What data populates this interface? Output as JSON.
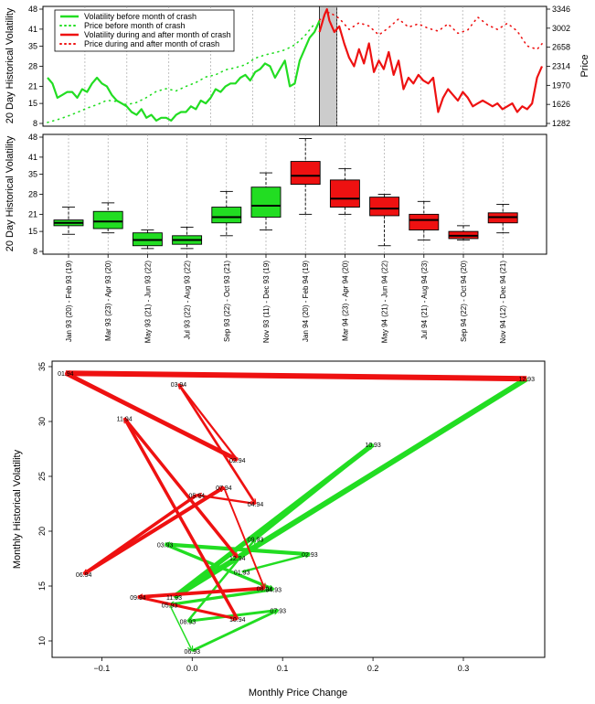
{
  "colors": {
    "green": "#22dd22",
    "red": "#ee1111",
    "crash_band": "#cccccc",
    "grid": "#999999"
  },
  "chart_data": [
    {
      "type": "line",
      "title": "",
      "ylabel_left": "20 Day Historical Volatility",
      "ylabel_right": "Price",
      "yticks_left": [
        "8",
        "15",
        "21",
        "28",
        "35",
        "41",
        "48"
      ],
      "ylim_left": [
        8,
        48
      ],
      "yticks_right": [
        "1282",
        "1626",
        "1970",
        "2314",
        "2658",
        "3002",
        "3346"
      ],
      "ylim_right": [
        1282,
        3346
      ],
      "crash_window": [
        0.55,
        0.585
      ],
      "legend": [
        "Volatility before month of crash",
        "Price before month of crash",
        "Volatility during and after month of crash",
        "Price during and after month of crash"
      ],
      "series": [
        {
          "name": "Volatility before month of crash",
          "style": "solid",
          "color": "green",
          "x": [
            0.0,
            0.01,
            0.02,
            0.03,
            0.04,
            0.05,
            0.06,
            0.07,
            0.08,
            0.09,
            0.1,
            0.11,
            0.12,
            0.13,
            0.14,
            0.15,
            0.16,
            0.17,
            0.18,
            0.19,
            0.2,
            0.21,
            0.22,
            0.23,
            0.24,
            0.25,
            0.26,
            0.27,
            0.28,
            0.29,
            0.3,
            0.31,
            0.32,
            0.33,
            0.34,
            0.35,
            0.36,
            0.37,
            0.38,
            0.39,
            0.4,
            0.41,
            0.42,
            0.43,
            0.44,
            0.45,
            0.46,
            0.47,
            0.48,
            0.49,
            0.5,
            0.51,
            0.52,
            0.53,
            0.54,
            0.55
          ],
          "y": [
            24,
            22,
            17,
            18,
            19,
            19,
            17,
            20,
            19,
            22,
            24,
            22,
            21,
            18,
            16,
            15,
            14,
            12,
            11,
            13,
            10,
            11,
            9,
            10,
            10,
            9,
            11,
            12,
            12,
            14,
            13,
            16,
            15,
            17,
            20,
            19,
            21,
            22,
            22,
            24,
            25,
            23,
            26,
            27,
            29,
            28,
            24,
            27,
            30,
            21,
            22,
            30,
            34,
            38,
            40,
            44
          ]
        },
        {
          "name": "Price before month of crash",
          "style": "dotted",
          "color": "green",
          "x": [
            0.0,
            0.02,
            0.04,
            0.06,
            0.08,
            0.1,
            0.12,
            0.14,
            0.16,
            0.18,
            0.2,
            0.22,
            0.24,
            0.26,
            0.28,
            0.3,
            0.32,
            0.34,
            0.36,
            0.38,
            0.4,
            0.42,
            0.44,
            0.46,
            0.48,
            0.5,
            0.52,
            0.54
          ],
          "y": [
            1300,
            1350,
            1410,
            1480,
            1560,
            1620,
            1700,
            1680,
            1620,
            1660,
            1750,
            1860,
            1910,
            1870,
            1950,
            2020,
            2120,
            2160,
            2250,
            2290,
            2340,
            2460,
            2520,
            2560,
            2610,
            2700,
            2860,
            3080
          ]
        },
        {
          "name": "Volatility during and after month of crash",
          "style": "solid",
          "color": "red",
          "x": [
            0.55,
            0.56,
            0.565,
            0.57,
            0.58,
            0.59,
            0.6,
            0.61,
            0.62,
            0.63,
            0.64,
            0.65,
            0.66,
            0.67,
            0.68,
            0.69,
            0.7,
            0.71,
            0.72,
            0.73,
            0.74,
            0.75,
            0.76,
            0.77,
            0.78,
            0.79,
            0.8,
            0.81,
            0.82,
            0.83,
            0.84,
            0.85,
            0.86,
            0.87,
            0.88,
            0.89,
            0.9,
            0.91,
            0.92,
            0.93,
            0.94,
            0.95,
            0.96,
            0.97,
            0.98,
            0.99,
            1.0
          ],
          "y": [
            40,
            46,
            48,
            44,
            40,
            42,
            36,
            31,
            28,
            34,
            29,
            36,
            26,
            30,
            27,
            33,
            25,
            30,
            20,
            24,
            22,
            25,
            23,
            22,
            24,
            12,
            17,
            20,
            18,
            16,
            19,
            17,
            14,
            15,
            16,
            15,
            14,
            15,
            13,
            14,
            15,
            12,
            14,
            13,
            15,
            24,
            28
          ]
        },
        {
          "name": "Price during and after month of crash",
          "style": "dotted",
          "color": "red",
          "x": [
            0.55,
            0.57,
            0.59,
            0.61,
            0.63,
            0.65,
            0.67,
            0.69,
            0.71,
            0.73,
            0.75,
            0.77,
            0.79,
            0.81,
            0.83,
            0.85,
            0.87,
            0.89,
            0.91,
            0.93,
            0.95,
            0.97,
            0.99,
            1.0
          ],
          "y": [
            3150,
            3290,
            3180,
            2980,
            3100,
            3040,
            2880,
            3010,
            3170,
            3020,
            3080,
            3000,
            2950,
            3080,
            2910,
            2970,
            3200,
            3060,
            2980,
            3090,
            2950,
            2680,
            2620,
            2720
          ]
        }
      ]
    },
    {
      "type": "box",
      "ylabel": "20 Day Historical Volatility",
      "yticks": [
        "8",
        "15",
        "21",
        "28",
        "35",
        "41",
        "48"
      ],
      "ylim": [
        8,
        48
      ],
      "categories": [
        "Jan 93 (20) - Feb 93 (19)",
        "Mar 93 (23) - Apr 93 (20)",
        "May 93 (21) - Jun 93 (22)",
        "Jul 93 (22) - Aug 93 (22)",
        "Sep 93 (22) - Oct 93 (21)",
        "Nov 93 (11) - Dec 93 (19)",
        "Jan 94 (20) - Feb 94 (19)",
        "Mar 94 (23) - Apr 94 (20)",
        "May 94 (21) - Jun 94 (22)",
        "Jul 94 (21) - Aug 94 (23)",
        "Sep 94 (22) - Oct 94 (20)",
        "Nov 94 (12) - Dec 94 (21)"
      ],
      "groups": [
        "before",
        "before",
        "before",
        "before",
        "before",
        "before",
        "after",
        "after",
        "after",
        "after",
        "after",
        "after"
      ],
      "boxes": [
        {
          "min": 14,
          "q1": 17,
          "median": 18,
          "q3": 19,
          "max": 23.5
        },
        {
          "min": 14.5,
          "q1": 16,
          "median": 18.5,
          "q3": 22,
          "max": 25
        },
        {
          "min": 9,
          "q1": 10,
          "median": 12,
          "q3": 14.5,
          "max": 15.5
        },
        {
          "min": 9,
          "q1": 10.5,
          "median": 12,
          "q3": 13.5,
          "max": 16.5
        },
        {
          "min": 13.5,
          "q1": 18,
          "median": 20,
          "q3": 23.5,
          "max": 29
        },
        {
          "min": 15.5,
          "q1": 20,
          "median": 24,
          "q3": 30.5,
          "max": 35.5
        },
        {
          "min": 21,
          "q1": 31.5,
          "median": 34.5,
          "q3": 39.5,
          "max": 47.5
        },
        {
          "min": 21,
          "q1": 23.5,
          "median": 26.5,
          "q3": 33,
          "max": 37
        },
        {
          "min": 10,
          "q1": 20.5,
          "median": 23,
          "q3": 27,
          "max": 28
        },
        {
          "min": 12,
          "q1": 15.5,
          "median": 19,
          "q3": 21,
          "max": 25.5
        },
        {
          "min": 12,
          "q1": 12.5,
          "median": 13.5,
          "q3": 15,
          "max": 17
        },
        {
          "min": 14.5,
          "q1": 18,
          "median": 20,
          "q3": 21.5,
          "max": 24.5
        }
      ]
    },
    {
      "type": "scatter",
      "xlabel": "Monthly Price Change",
      "ylabel": "Monthly Historical Volatility",
      "xlim": [
        -0.155,
        0.39
      ],
      "ylim": [
        8.5,
        35.5
      ],
      "xticks": [
        -0.1,
        0.0,
        0.1,
        0.2,
        0.3
      ],
      "xtick_labels": [
        "−0.1",
        "0.0",
        "0.1",
        "0.2",
        "0.3"
      ],
      "yticks": [
        10,
        15,
        20,
        25,
        30,
        35
      ],
      "ytick_labels": [
        "10",
        "15",
        "20",
        "25",
        "30",
        "35"
      ],
      "points": [
        {
          "label": "01.93",
          "x": 0.055,
          "y": 16.3,
          "group": "before"
        },
        {
          "label": "02.93",
          "x": 0.13,
          "y": 17.9,
          "group": "before"
        },
        {
          "label": "03.93",
          "x": -0.03,
          "y": 18.8,
          "group": "before"
        },
        {
          "label": "04.93",
          "x": 0.09,
          "y": 14.7,
          "group": "before"
        },
        {
          "label": "05.93",
          "x": -0.025,
          "y": 13.3,
          "group": "before"
        },
        {
          "label": "06.93",
          "x": 0.0,
          "y": 9.1,
          "group": "before"
        },
        {
          "label": "07.93",
          "x": 0.095,
          "y": 12.8,
          "group": "before"
        },
        {
          "label": "08.93",
          "x": -0.005,
          "y": 11.8,
          "group": "before"
        },
        {
          "label": "09.93",
          "x": 0.07,
          "y": 19.3,
          "group": "before"
        },
        {
          "label": "10.93",
          "x": 0.2,
          "y": 27.9,
          "group": "before"
        },
        {
          "label": "11.93",
          "x": -0.02,
          "y": 14.0,
          "group": "before"
        },
        {
          "label": "12.93",
          "x": 0.37,
          "y": 33.9,
          "group": "before"
        },
        {
          "label": "01.94",
          "x": -0.14,
          "y": 34.4,
          "group": "after"
        },
        {
          "label": "02.94",
          "x": 0.05,
          "y": 26.5,
          "group": "after"
        },
        {
          "label": "03.94",
          "x": -0.015,
          "y": 33.4,
          "group": "after"
        },
        {
          "label": "04.94",
          "x": 0.07,
          "y": 22.5,
          "group": "after"
        },
        {
          "label": "05.94",
          "x": 0.005,
          "y": 23.3,
          "group": "after"
        },
        {
          "label": "06.94",
          "x": -0.12,
          "y": 16.1,
          "group": "after"
        },
        {
          "label": "07.94",
          "x": 0.035,
          "y": 24.0,
          "group": "after"
        },
        {
          "label": "08.94",
          "x": 0.08,
          "y": 14.8,
          "group": "after"
        },
        {
          "label": "09.94",
          "x": -0.06,
          "y": 14.0,
          "group": "after"
        },
        {
          "label": "10.94",
          "x": 0.05,
          "y": 12.0,
          "group": "after"
        },
        {
          "label": "11.94",
          "x": -0.075,
          "y": 30.3,
          "group": "after"
        },
        {
          "label": "12.94",
          "x": 0.05,
          "y": 17.6,
          "group": "after"
        }
      ],
      "arrows": [
        {
          "from": "01.93",
          "to": "02.93",
          "group": "before"
        },
        {
          "from": "02.93",
          "to": "03.93",
          "group": "before"
        },
        {
          "from": "03.93",
          "to": "04.93",
          "group": "before"
        },
        {
          "from": "04.93",
          "to": "05.93",
          "group": "before"
        },
        {
          "from": "05.93",
          "to": "06.93",
          "group": "before"
        },
        {
          "from": "06.93",
          "to": "07.93",
          "group": "before"
        },
        {
          "from": "07.93",
          "to": "08.93",
          "group": "before"
        },
        {
          "from": "08.93",
          "to": "09.93",
          "group": "before"
        },
        {
          "from": "09.93",
          "to": "10.93",
          "group": "before"
        },
        {
          "from": "10.93",
          "to": "11.93",
          "group": "before"
        },
        {
          "from": "11.93",
          "to": "12.93",
          "group": "before"
        },
        {
          "from": "12.93",
          "to": "01.94",
          "group": "after"
        },
        {
          "from": "01.94",
          "to": "02.94",
          "group": "after"
        },
        {
          "from": "02.94",
          "to": "03.94",
          "group": "after"
        },
        {
          "from": "03.94",
          "to": "04.94",
          "group": "after"
        },
        {
          "from": "04.94",
          "to": "05.94",
          "group": "after"
        },
        {
          "from": "05.94",
          "to": "06.94",
          "group": "after"
        },
        {
          "from": "06.94",
          "to": "07.94",
          "group": "after"
        },
        {
          "from": "07.94",
          "to": "08.94",
          "group": "after"
        },
        {
          "from": "08.94",
          "to": "09.94",
          "group": "after"
        },
        {
          "from": "09.94",
          "to": "10.94",
          "group": "after"
        },
        {
          "from": "10.94",
          "to": "11.94",
          "group": "after"
        },
        {
          "from": "11.94",
          "to": "12.94",
          "group": "after"
        }
      ]
    }
  ]
}
